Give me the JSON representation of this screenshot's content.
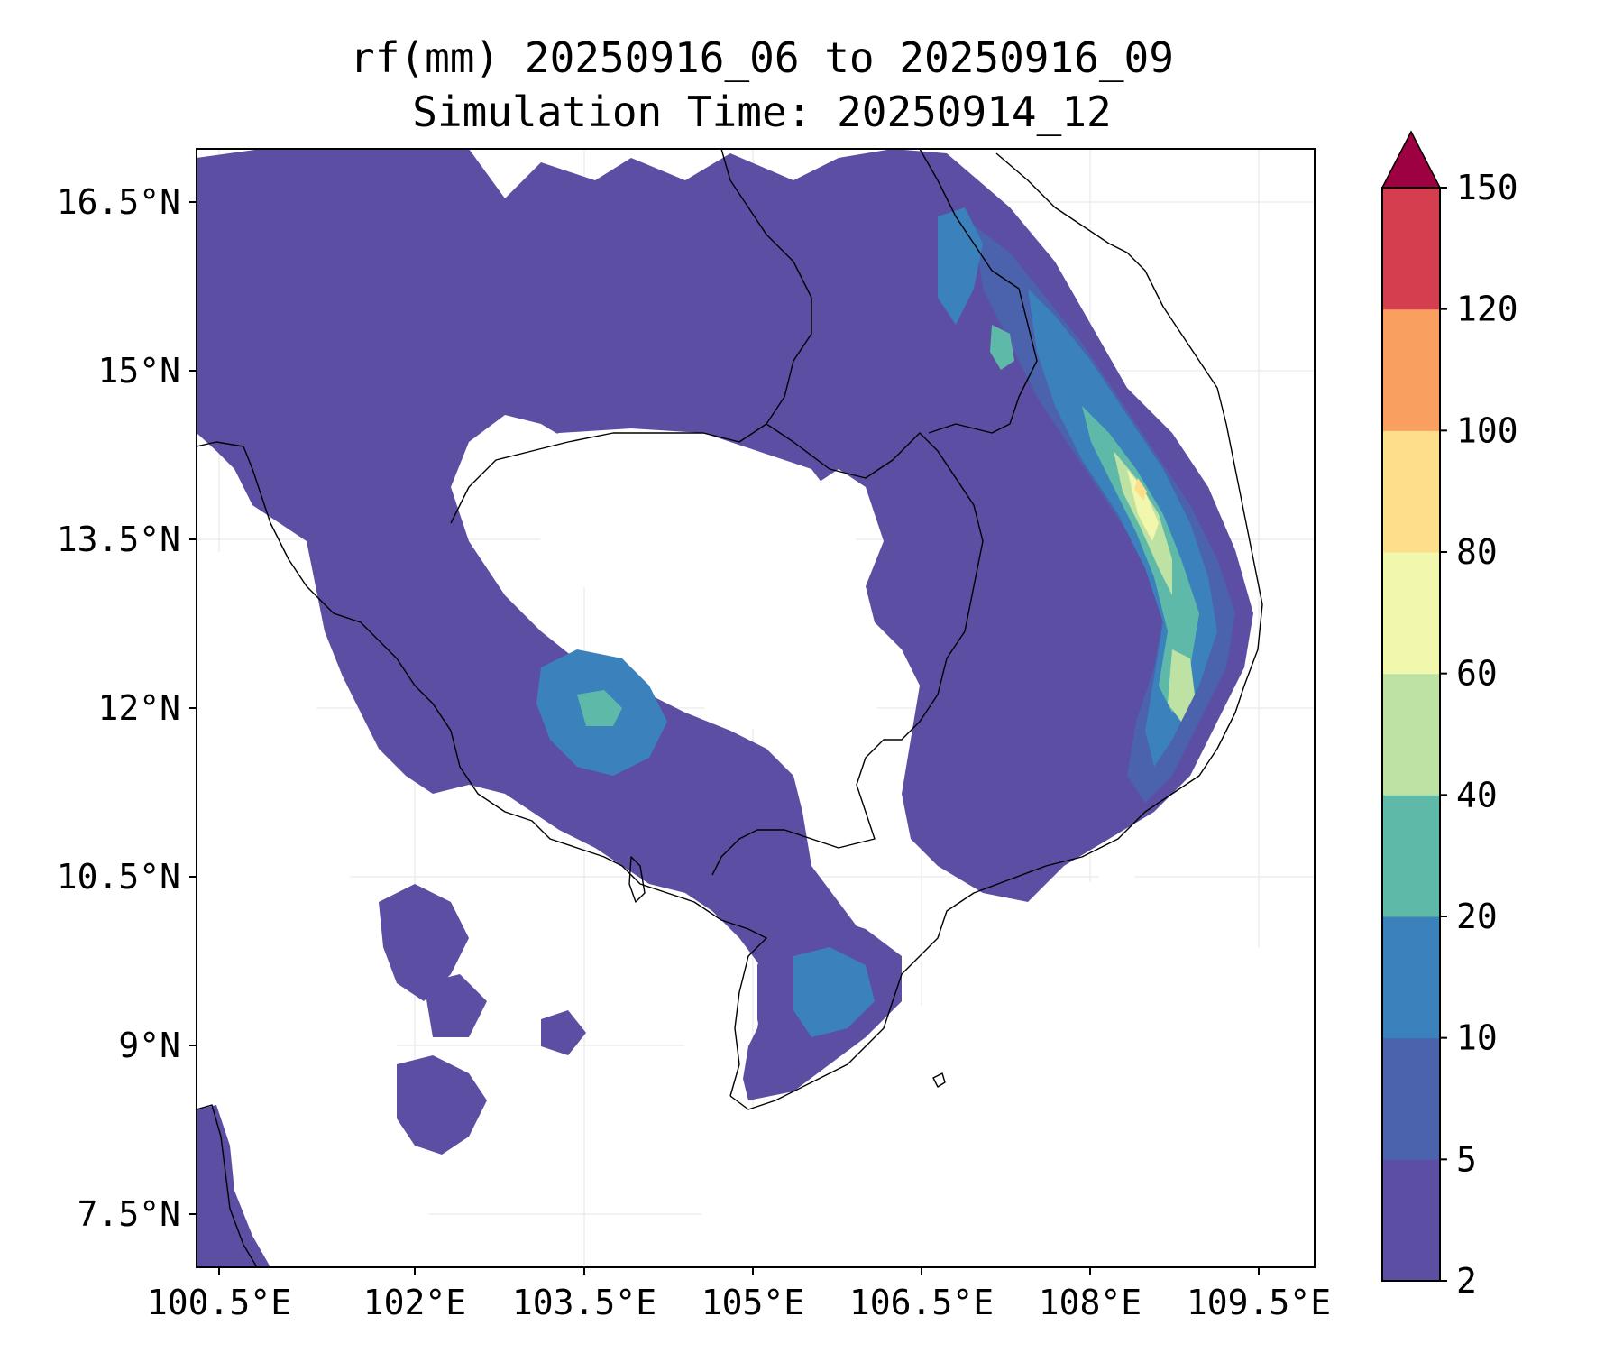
{
  "title": {
    "line1": "rf(mm) 20250916_06 to 20250916_09",
    "line2": "Simulation Time: 20250914_12"
  },
  "map": {
    "lon_ticks": [
      "100.5°E",
      "102°E",
      "103.5°E",
      "105°E",
      "106.5°E",
      "108°E",
      "109.5°E"
    ],
    "lat_ticks": [
      "16.5°N",
      "15°N",
      "13.5°N",
      "12°N",
      "10.5°N",
      "9°N",
      "7.5°N"
    ],
    "gridlines": true,
    "coastline_color": "#000000"
  },
  "colorbar": {
    "levels": [
      "2",
      "5",
      "10",
      "20",
      "40",
      "60",
      "80",
      "100",
      "120",
      "150"
    ],
    "colors": [
      "#5b4ea3",
      "#4b62ad",
      "#3b81bc",
      "#5fb9a8",
      "#bde2a4",
      "#f1f8ad",
      "#fcde8b",
      "#f99f5f",
      "#d43e4e"
    ],
    "extend_color": "#9e0142",
    "extend": "max"
  }
}
